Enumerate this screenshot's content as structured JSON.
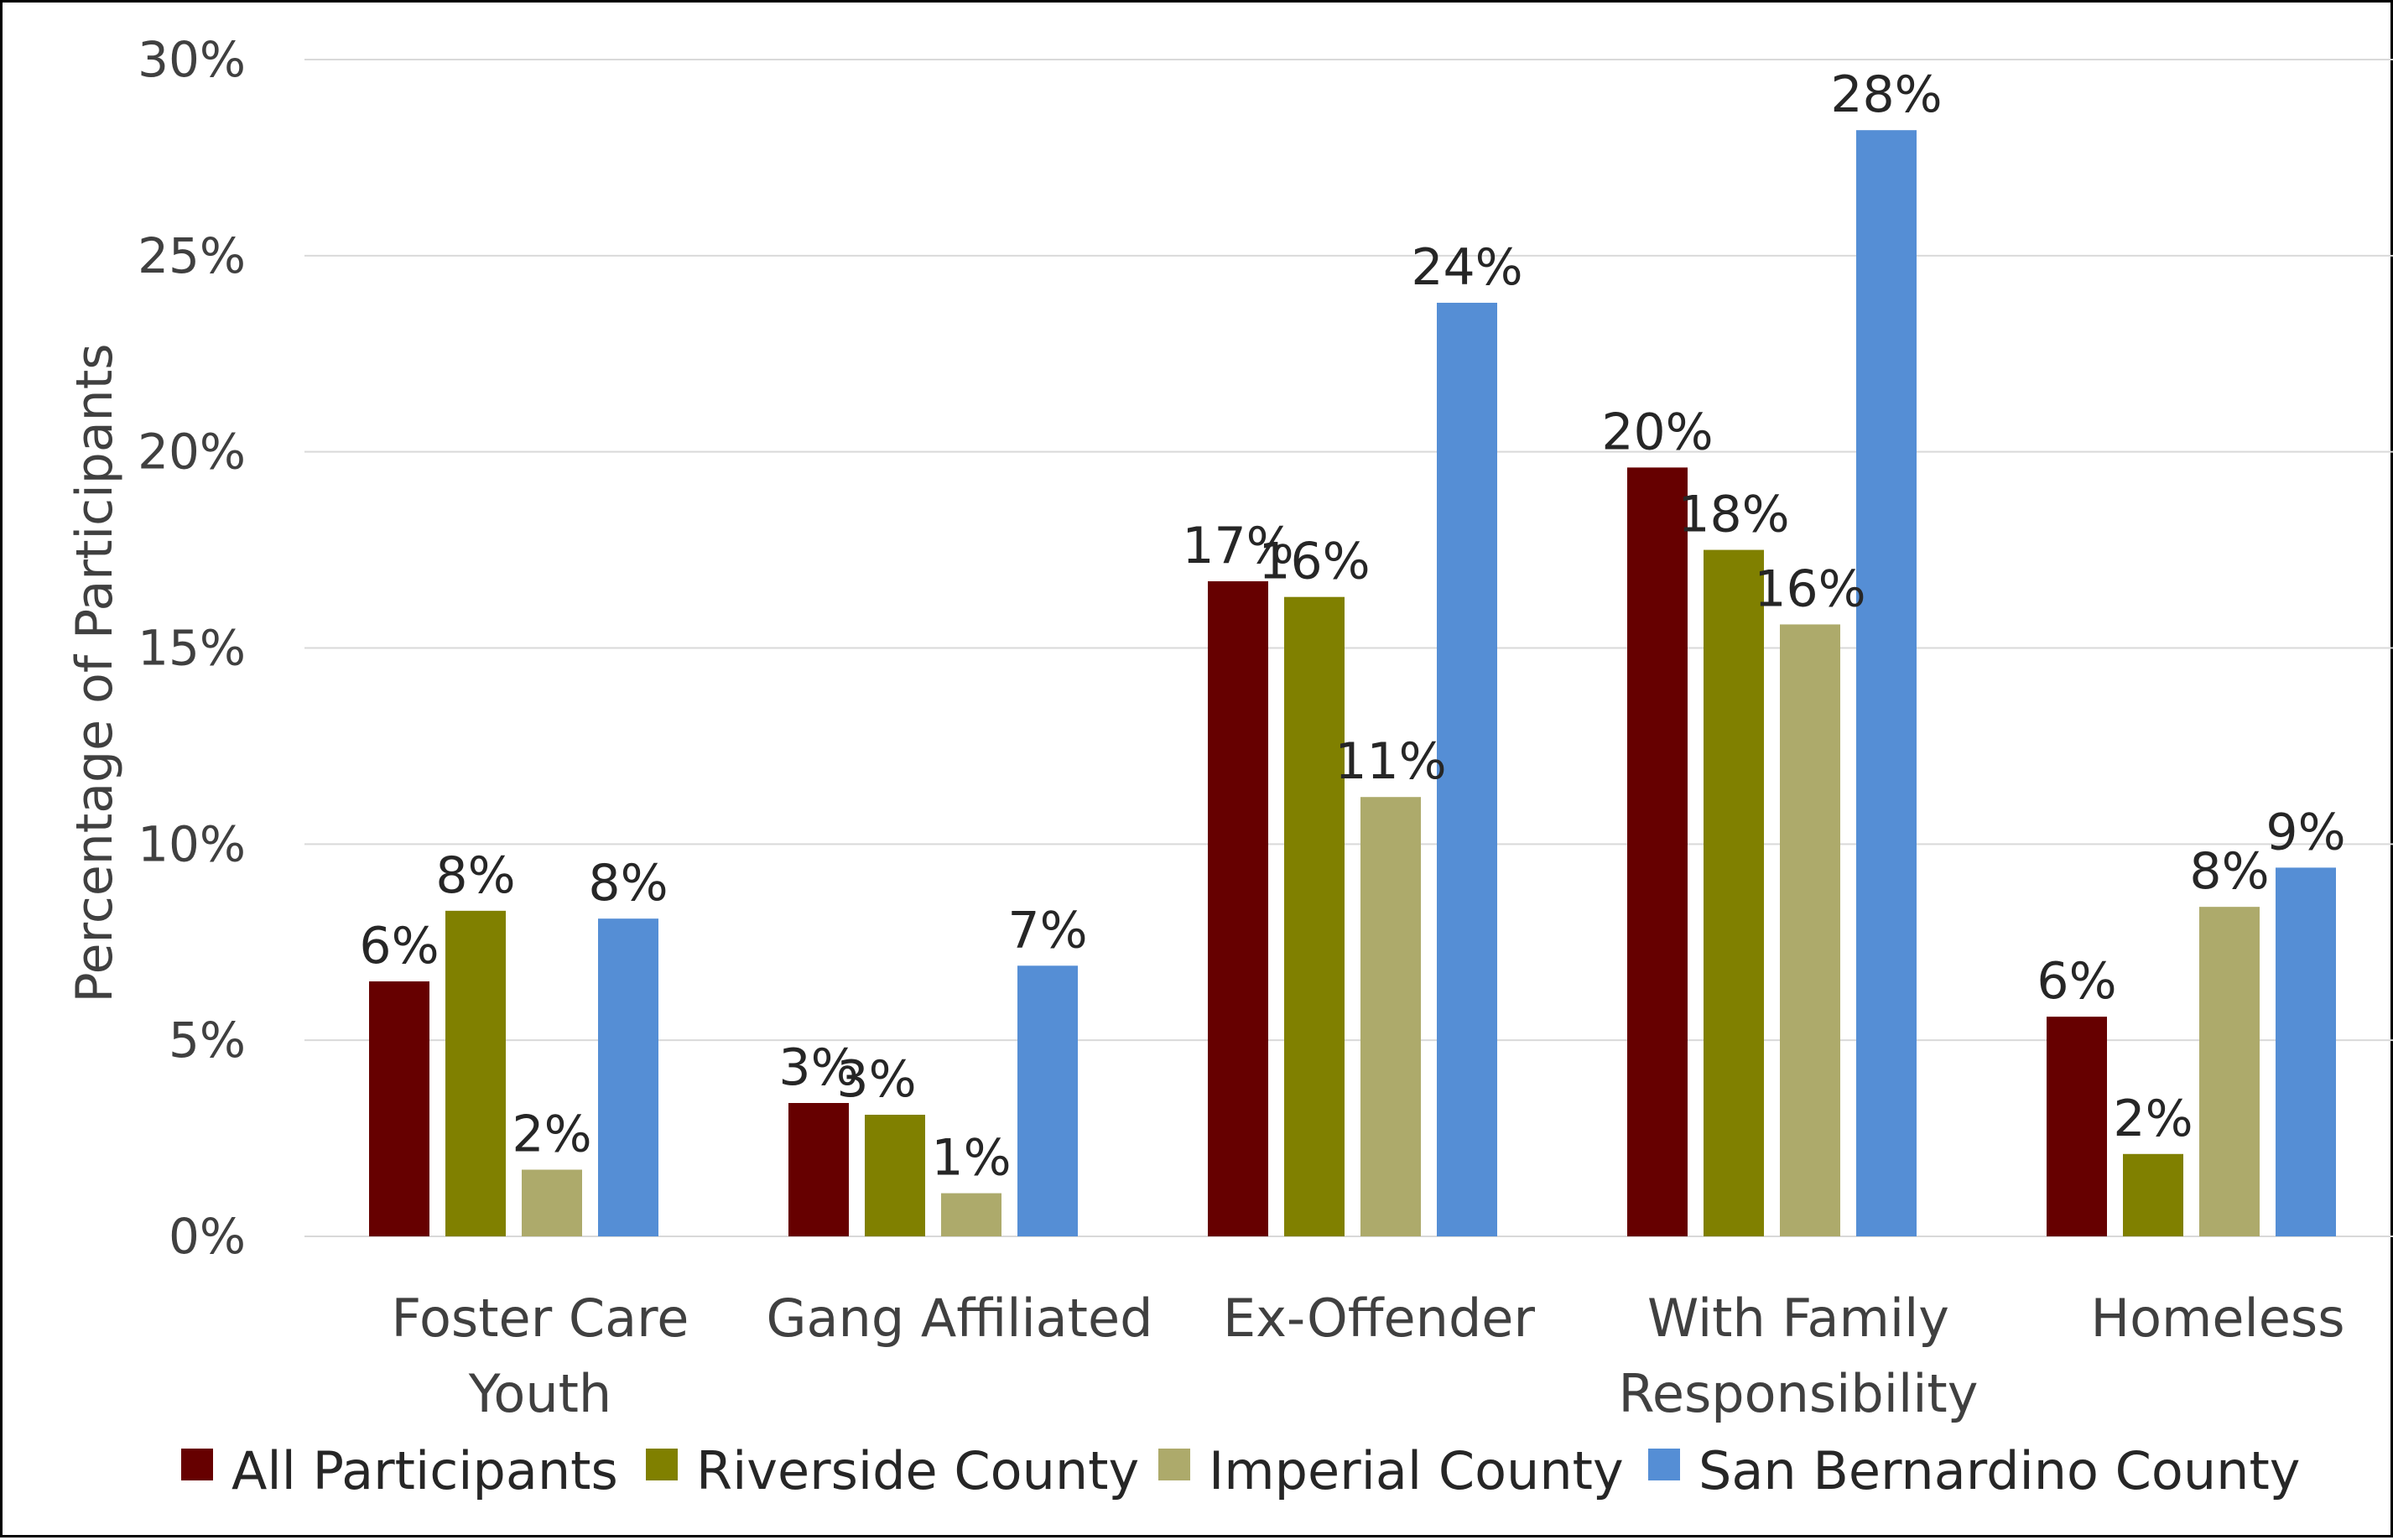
{
  "chart_data": {
    "type": "bar",
    "title": "",
    "xlabel": "",
    "ylabel": "Percentage of Participants",
    "ylim": [
      0,
      30
    ],
    "y_ticks": [
      "0%",
      "5%",
      "10%",
      "15%",
      "20%",
      "25%",
      "30%"
    ],
    "grid": true,
    "legend_position": "bottom",
    "categories": [
      [
        "Foster Care",
        "Youth"
      ],
      [
        "Gang Affiliated"
      ],
      [
        "Ex-Offender"
      ],
      [
        "With Family",
        "Responsibility"
      ],
      [
        "Homeless"
      ]
    ],
    "series": [
      {
        "name": "All Participants",
        "color": "#660000",
        "values": [
          6.5,
          3.4,
          16.7,
          19.6,
          5.6
        ],
        "labels": [
          "6%",
          "3%",
          "17%",
          "20%",
          "6%"
        ]
      },
      {
        "name": "Riverside County",
        "color": "#808000",
        "values": [
          8.3,
          3.1,
          16.3,
          17.5,
          2.1
        ],
        "labels": [
          "8%",
          "3%",
          "16%",
          "18%",
          "2%"
        ]
      },
      {
        "name": "Imperial County",
        "color": "#adaa6b",
        "values": [
          1.7,
          1.1,
          11.2,
          15.6,
          8.4
        ],
        "labels": [
          "2%",
          "1%",
          "11%",
          "16%",
          "8%"
        ]
      },
      {
        "name": "San Bernardino County",
        "color": "#558ed5",
        "values": [
          8.1,
          6.9,
          23.8,
          28.2,
          9.4
        ],
        "labels": [
          "8%",
          "7%",
          "24%",
          "28%",
          "9%"
        ]
      }
    ]
  }
}
